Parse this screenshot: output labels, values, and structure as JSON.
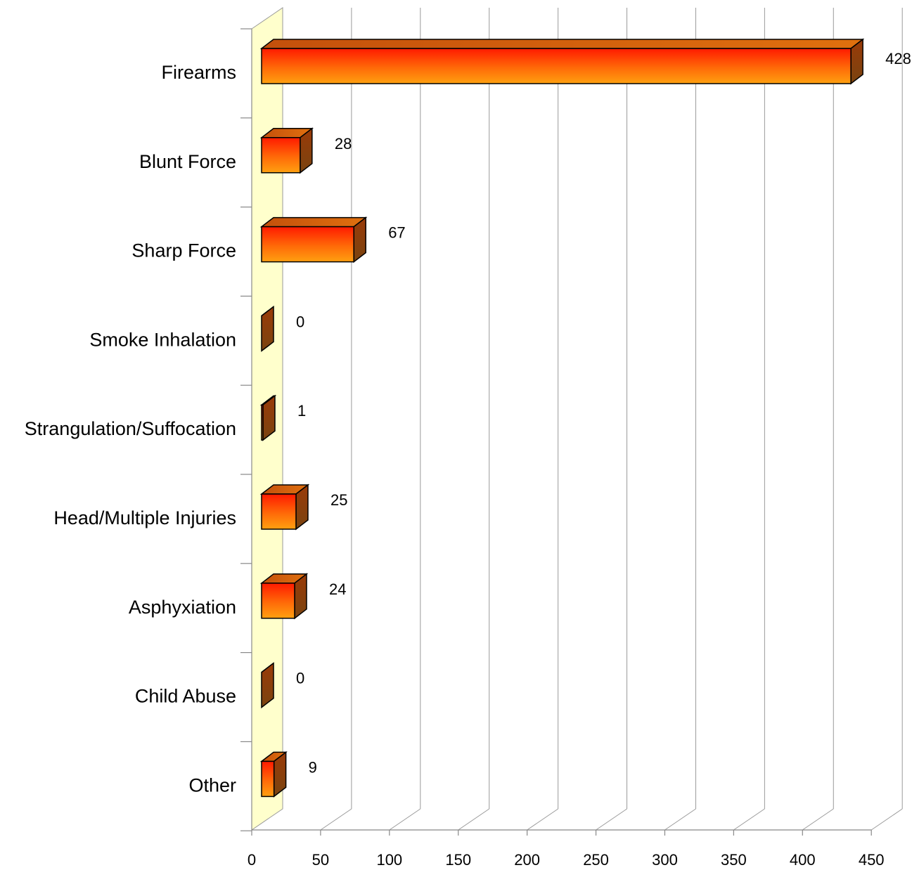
{
  "chart_data": {
    "type": "bar",
    "orientation": "horizontal",
    "three_d": true,
    "categories": [
      "Firearms",
      "Blunt Force",
      "Sharp Force",
      "Smoke Inhalation",
      "Strangulation/Suffocation",
      "Head/Multiple Injuries",
      "Asphyxiation",
      "Child Abuse",
      "Other"
    ],
    "values": [
      428,
      28,
      67,
      0,
      1,
      25,
      24,
      0,
      9
    ],
    "data_labels": [
      "428",
      "28",
      "67",
      "0",
      "1",
      "25",
      "24",
      "0",
      "9"
    ],
    "title": "",
    "xlabel": "",
    "ylabel": "",
    "xlim": [
      0,
      450
    ],
    "xticks": [
      0,
      50,
      100,
      150,
      200,
      250,
      300,
      350,
      400,
      450
    ],
    "xtick_labels": [
      "0",
      "50",
      "100",
      "150",
      "200",
      "250",
      "300",
      "350",
      "400",
      "450"
    ],
    "grid": true,
    "legend": "none",
    "colors": {
      "bar_top_edge": "#ff1a00",
      "bar_bottom_edge": "#ff9a10",
      "bar_side": "#8a3e0c",
      "bar_top_face": "#d4620e",
      "back_wall": "#ffffcc",
      "gridline": "#9a9a9a"
    }
  }
}
